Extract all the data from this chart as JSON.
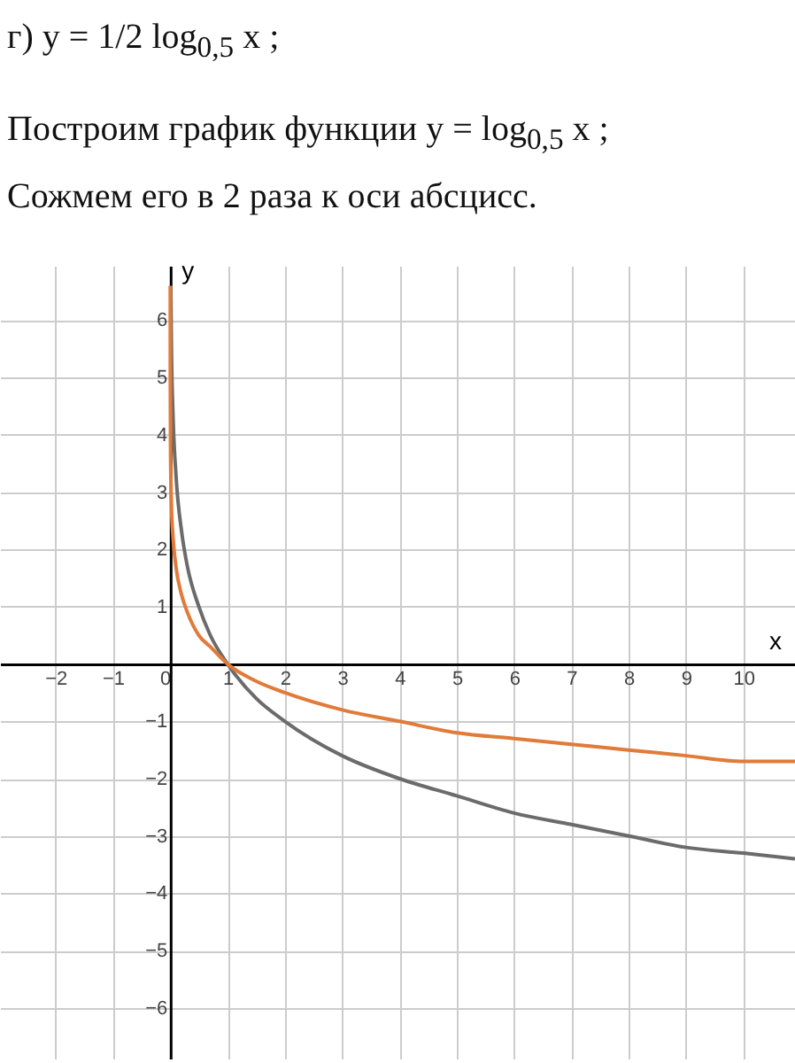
{
  "chart_data": {
    "type": "line",
    "title": "г) y = 1/2 log$_{0,5}$ x ;",
    "subtitle": "Построим график функции y = log$_{0,5}$ x ;",
    "annotations": [
      "Сожмем его в 2 раза к оси абсцисс."
    ],
    "xlabel": "x",
    "ylabel": "y",
    "xlim": [
      -2.97,
      10.9
    ],
    "ylim": [
      -6.9,
      6.95
    ],
    "xticks": [
      -2,
      -1,
      0,
      1,
      2,
      3,
      4,
      5,
      6,
      7,
      8,
      9,
      10
    ],
    "yticks": [
      -6,
      -5,
      -4,
      -3,
      -2,
      -1,
      1,
      2,
      3,
      4,
      5,
      6
    ],
    "grid": true,
    "marker": "none",
    "line_style": "solid",
    "series": [
      {
        "color": "#6b6b6b",
        "x": [
          0.01,
          0.02,
          0.05,
          0.1,
          0.2,
          0.3,
          0.5,
          0.7,
          1,
          1.5,
          2,
          3,
          4,
          5,
          6,
          7,
          8,
          9,
          10,
          10.9
        ],
        "values": [
          6.6,
          5.6,
          4.3,
          3.3,
          2.3,
          1.7,
          1,
          0.5,
          0,
          -0.6,
          -1,
          -1.6,
          -2,
          -2.3,
          -2.6,
          -2.8,
          -3,
          -3.2,
          -3.3,
          -3.4
        ]
      },
      {
        "color": "#e07b39",
        "x": [
          0.0001,
          0.001,
          0.005,
          0.01,
          0.02,
          0.05,
          0.1,
          0.2,
          0.3,
          0.5,
          0.7,
          1,
          1.5,
          2,
          3,
          4,
          5,
          6,
          7,
          8,
          9,
          10,
          10.9
        ],
        "values": [
          6.6,
          5,
          3.8,
          3.3,
          2.8,
          2.2,
          1.7,
          1.2,
          0.9,
          0.5,
          0.3,
          0,
          -0.3,
          -0.5,
          -0.8,
          -1,
          -1.2,
          -1.3,
          -1.4,
          -1.5,
          -1.6,
          -1.7,
          -1.7
        ]
      }
    ]
  }
}
